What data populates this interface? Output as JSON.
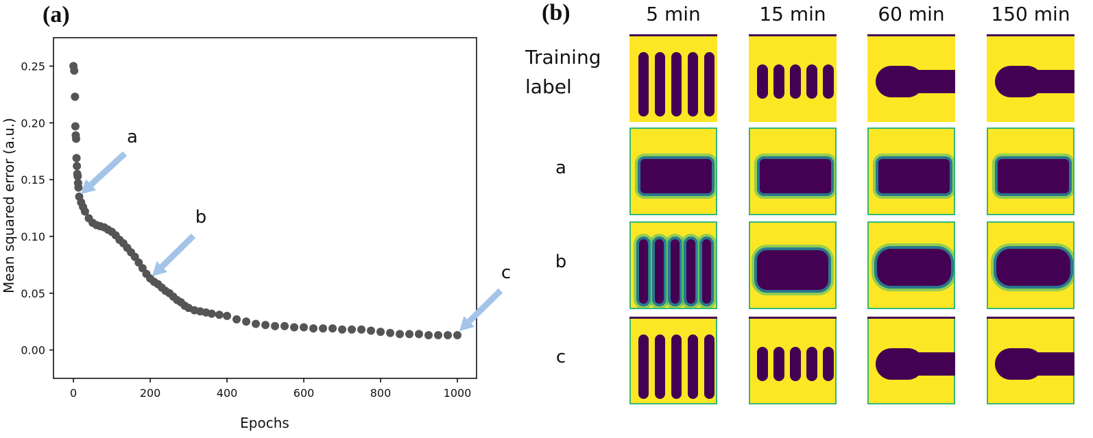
{
  "panel_labels": [
    "(a)",
    "(b)"
  ],
  "chart_data": {
    "type": "scatter",
    "x_label": "Epochs",
    "y_label": "Mean squared error (a.u.)",
    "color": "#555555",
    "xlim": [
      -52,
      1050
    ],
    "xticks": [
      0,
      200,
      400,
      600,
      800,
      1000
    ],
    "ylim": [
      -0.025,
      0.275
    ],
    "yticks": [
      {
        "value": 0,
        "label": "0.00"
      },
      0.05,
      {
        "value": 0.1,
        "label": "0.10"
      },
      0.15,
      {
        "value": 0.2,
        "label": "0.20"
      },
      0.25
    ],
    "x": [
      0,
      2,
      4,
      5,
      6,
      7,
      8,
      9,
      10,
      11,
      12,
      13,
      15,
      20,
      25,
      30,
      40,
      50,
      60,
      70,
      80,
      90,
      100,
      110,
      120,
      130,
      140,
      150,
      160,
      170,
      180,
      190,
      200,
      210,
      220,
      230,
      240,
      250,
      260,
      270,
      280,
      290,
      300,
      315,
      330,
      345,
      360,
      380,
      400,
      425,
      450,
      475,
      500,
      525,
      550,
      575,
      600,
      625,
      650,
      675,
      700,
      725,
      750,
      775,
      800,
      825,
      850,
      875,
      900,
      925,
      950,
      975,
      1000
    ],
    "values": [
      0.25,
      0.246,
      0.223,
      0.197,
      0.189,
      0.186,
      0.169,
      0.162,
      0.155,
      0.153,
      0.147,
      0.143,
      0.135,
      0.13,
      0.126,
      0.122,
      0.116,
      0.112,
      0.11,
      0.109,
      0.108,
      0.106,
      0.104,
      0.101,
      0.097,
      0.094,
      0.09,
      0.086,
      0.082,
      0.077,
      0.072,
      0.067,
      0.063,
      0.06,
      0.058,
      0.055,
      0.052,
      0.05,
      0.047,
      0.044,
      0.042,
      0.039,
      0.037,
      0.035,
      0.034,
      0.033,
      0.032,
      0.031,
      0.03,
      0.027,
      0.025,
      0.023,
      0.022,
      0.021,
      0.021,
      0.02,
      0.02,
      0.019,
      0.019,
      0.019,
      0.018,
      0.018,
      0.018,
      0.017,
      0.016,
      0.015,
      0.014,
      0.014,
      0.014,
      0.013,
      0.013,
      0.013,
      0.013
    ],
    "annotations": [
      "a",
      "b",
      "c"
    ]
  },
  "grid_panel": {
    "columns": [
      "5 min",
      "15 min",
      "60 min",
      "150 min"
    ],
    "rows": [
      "Training label",
      "a",
      "b",
      "c"
    ]
  }
}
